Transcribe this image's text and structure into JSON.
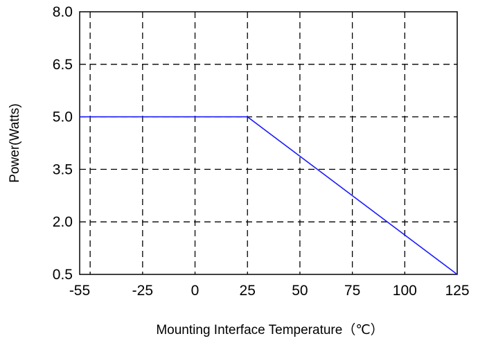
{
  "chart_data": {
    "type": "line",
    "title": "",
    "xlabel": "Mounting Interface Temperature（℃）",
    "ylabel": "Power(Watts)",
    "xlim": [
      -55,
      125
    ],
    "ylim": [
      0.5,
      8.0
    ],
    "x_ticks": [
      -55,
      -25,
      0,
      25,
      50,
      75,
      100,
      125
    ],
    "x_tick_labels": [
      "-55",
      "-25",
      "0",
      "25",
      "50",
      "75",
      "100",
      "125"
    ],
    "y_ticks": [
      0.5,
      2.0,
      3.5,
      5.0,
      6.5,
      8.0
    ],
    "y_tick_labels": [
      "0.5",
      "2.0",
      "3.5",
      "5.0",
      "6.5",
      "8.0"
    ],
    "x_gridlines": [
      -50,
      -25,
      0,
      25,
      50,
      75,
      100
    ],
    "grid": true,
    "series": [
      {
        "color": "#1a1aff",
        "x": [
          -55,
          25,
          125
        ],
        "y": [
          5.0,
          5.0,
          0.5
        ]
      }
    ]
  }
}
